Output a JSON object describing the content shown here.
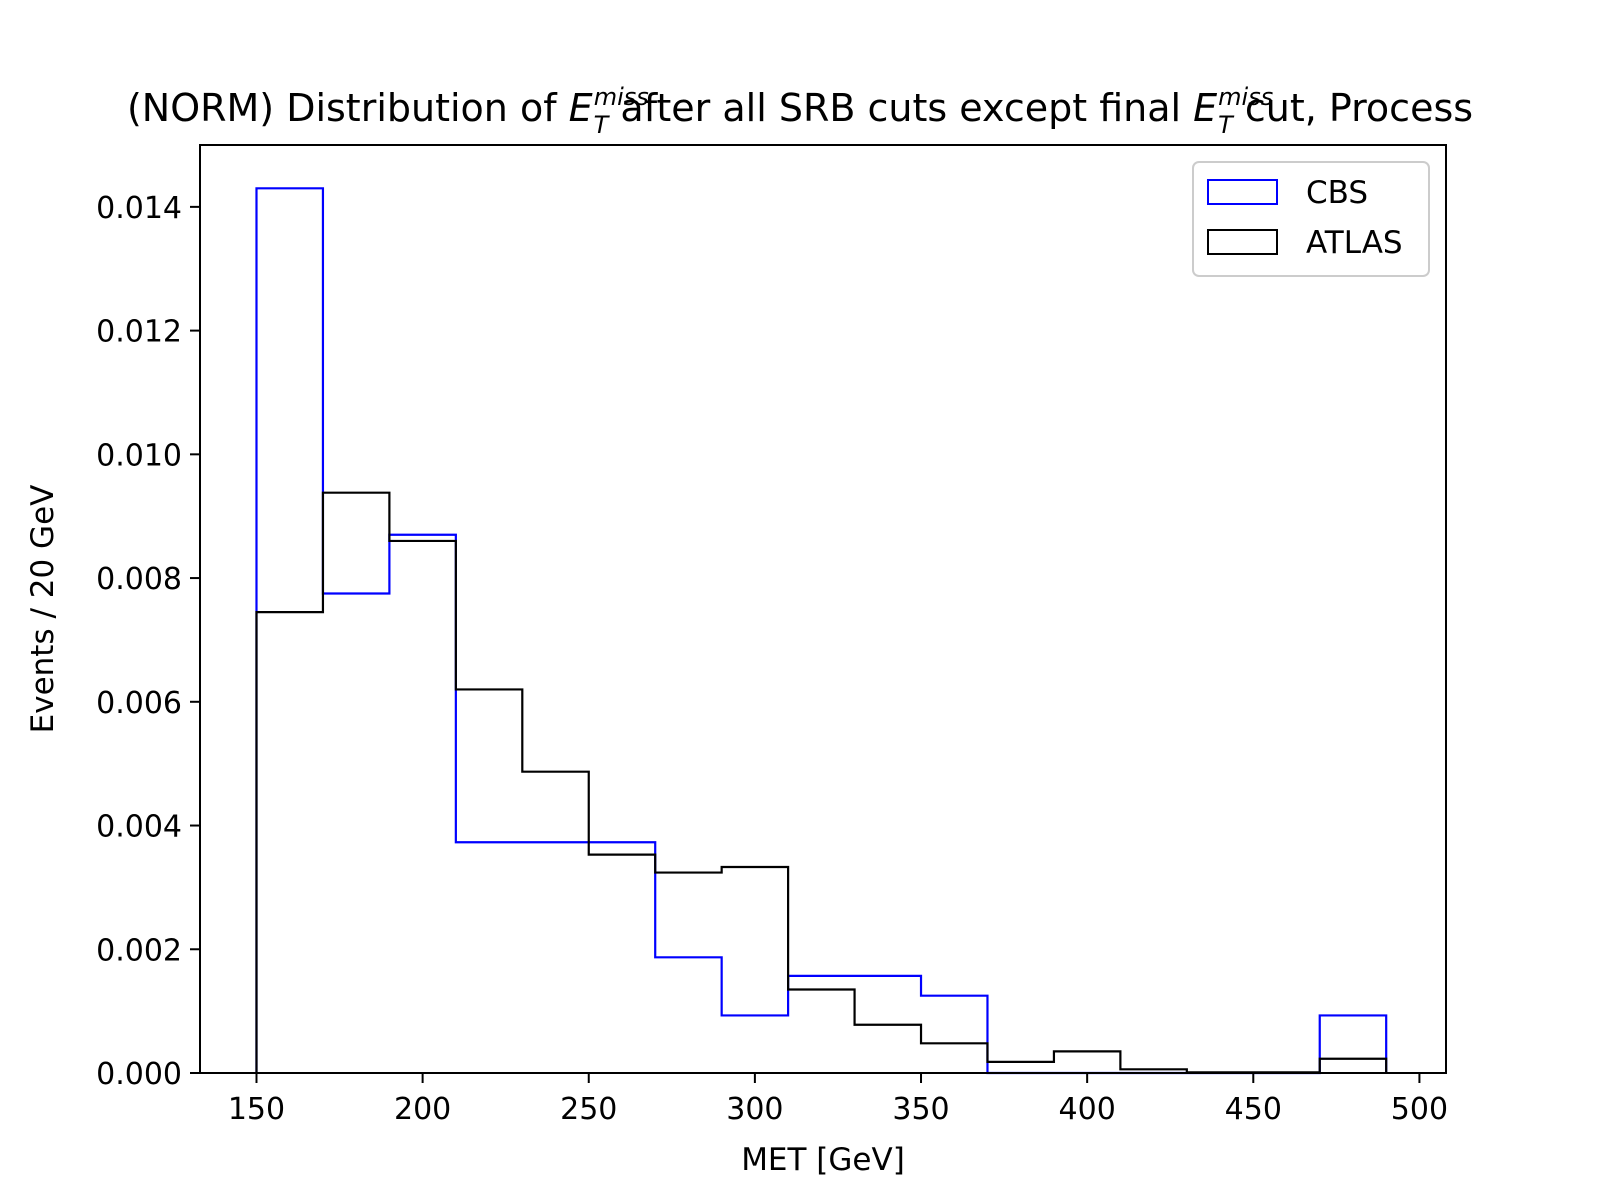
{
  "chart_data": {
    "type": "histogram",
    "title": {
      "prefix": "(NORM) Distribution of ",
      "sym1_base": "E",
      "sym1_sub": "T",
      "sym1_sup": "miss",
      "middle": " after all SRB cuts except final ",
      "sym2_base": "E",
      "sym2_sub": "T",
      "sym2_sup": "miss",
      "suffix": " cut, Process"
    },
    "xlabel": "MET [GeV]",
    "ylabel": "Events / 20 GeV",
    "xlim": [
      133,
      508
    ],
    "ylim": [
      0,
      0.015
    ],
    "xticks": [
      150,
      200,
      250,
      300,
      350,
      400,
      450,
      500
    ],
    "xtick_labels": [
      "150",
      "200",
      "250",
      "300",
      "350",
      "400",
      "450",
      "500"
    ],
    "yticks": [
      0.0,
      0.002,
      0.004,
      0.006,
      0.008,
      0.01,
      0.012,
      0.014
    ],
    "ytick_labels": [
      "0.000",
      "0.002",
      "0.004",
      "0.006",
      "0.008",
      "0.010",
      "0.012",
      "0.014"
    ],
    "bin_edges": [
      150,
      170,
      190,
      210,
      230,
      250,
      270,
      290,
      310,
      330,
      350,
      370,
      390,
      410,
      430,
      450,
      470,
      490
    ],
    "legend_position": "top-right",
    "grid": false,
    "series": [
      {
        "name": "CBS",
        "color": "#0000ff",
        "values": [
          0.0143,
          0.00775,
          0.0087,
          0.00373,
          0.00373,
          0.00373,
          0.00187,
          0.00093,
          0.00157,
          0.00157,
          0.00125,
          0.0,
          0.0,
          0.0,
          0.0,
          0.0,
          0.00093
        ]
      },
      {
        "name": "ATLAS",
        "color": "#000000",
        "values": [
          0.00745,
          0.00938,
          0.0086,
          0.0062,
          0.00487,
          0.00353,
          0.00324,
          0.00333,
          0.00135,
          0.00078,
          0.00048,
          0.00018,
          0.00035,
          6e-05,
          1e-05,
          1e-05,
          0.00023
        ]
      }
    ]
  }
}
